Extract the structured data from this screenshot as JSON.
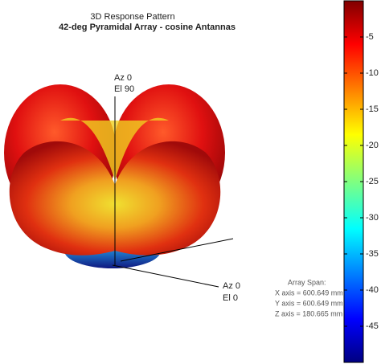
{
  "chart_data": {
    "type": "surface3d",
    "title": "3D Response Pattern",
    "subtitle": "42-deg Pyramidal Array - cosine Antannas",
    "annotations": [
      "Az 0",
      "El 90",
      "Az 0",
      "El 0"
    ],
    "info": [
      "Array Span:",
      "X axis = 600.649 mm",
      "Y axis = 600.649 mm",
      "Z axis = 180.665 mm"
    ],
    "colormap": "jet",
    "clim": [
      -50,
      0
    ],
    "cticks": [
      -5,
      -10,
      -15,
      -20,
      -25,
      -30,
      -35,
      -40,
      -45
    ]
  }
}
